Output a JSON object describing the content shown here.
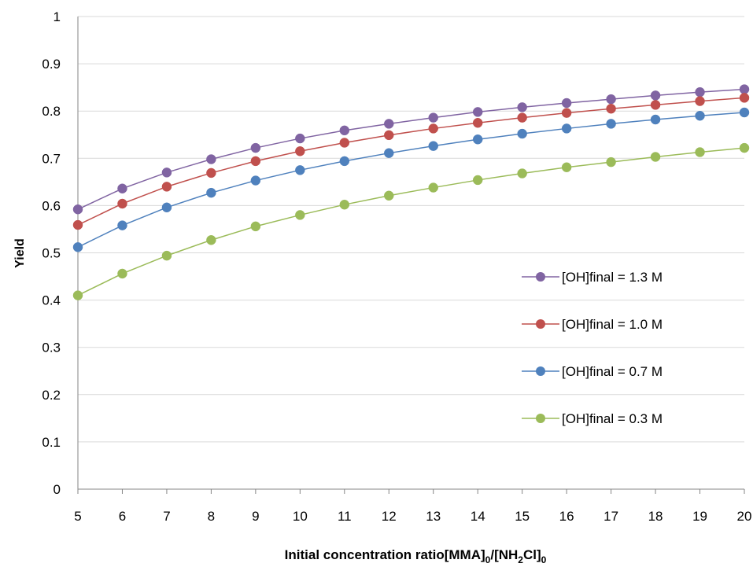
{
  "chart_data": {
    "type": "line",
    "title": "",
    "xlabel": {
      "main": "Initial concentration ratio[MMA]",
      "sub1": "0",
      "mid": "/[NH",
      "sub2": "2",
      "end": "Cl]",
      "sub3": "0"
    },
    "ylabel": "Yield",
    "x": [
      5,
      6,
      7,
      8,
      9,
      10,
      11,
      12,
      13,
      14,
      15,
      16,
      17,
      18,
      19,
      20
    ],
    "xticks": [
      "5",
      "6",
      "7",
      "8",
      "9",
      "10",
      "11",
      "12",
      "13",
      "14",
      "15",
      "16",
      "17",
      "18",
      "19",
      "20"
    ],
    "yticks": [
      "0",
      "0.1",
      "0.2",
      "0.3",
      "0.4",
      "0.5",
      "0.6",
      "0.7",
      "0.8",
      "0.9",
      "1"
    ],
    "xlim": [
      5,
      20
    ],
    "ylim": [
      0,
      1
    ],
    "grid": "horizontal",
    "legend_position": "right-center",
    "series": [
      {
        "name": "[OH]final = 1.3 M",
        "color": "#8064a2",
        "values": [
          0.592,
          0.636,
          0.67,
          0.698,
          0.722,
          0.742,
          0.759,
          0.773,
          0.786,
          0.798,
          0.808,
          0.817,
          0.825,
          0.833,
          0.84,
          0.846
        ]
      },
      {
        "name": "[OH]final = 1.0 M",
        "color": "#c0504d",
        "values": [
          0.559,
          0.604,
          0.64,
          0.669,
          0.694,
          0.715,
          0.733,
          0.749,
          0.763,
          0.775,
          0.786,
          0.796,
          0.805,
          0.813,
          0.821,
          0.828
        ]
      },
      {
        "name": "[OH]final = 0.7 M",
        "color": "#4f81bd",
        "values": [
          0.512,
          0.558,
          0.596,
          0.627,
          0.653,
          0.675,
          0.694,
          0.711,
          0.726,
          0.74,
          0.752,
          0.763,
          0.773,
          0.782,
          0.79,
          0.797
        ]
      },
      {
        "name": "[OH]final = 0.3 M",
        "color": "#9bbb59",
        "values": [
          0.41,
          0.456,
          0.494,
          0.527,
          0.556,
          0.58,
          0.602,
          0.621,
          0.638,
          0.654,
          0.668,
          0.681,
          0.692,
          0.703,
          0.713,
          0.722
        ]
      }
    ]
  }
}
